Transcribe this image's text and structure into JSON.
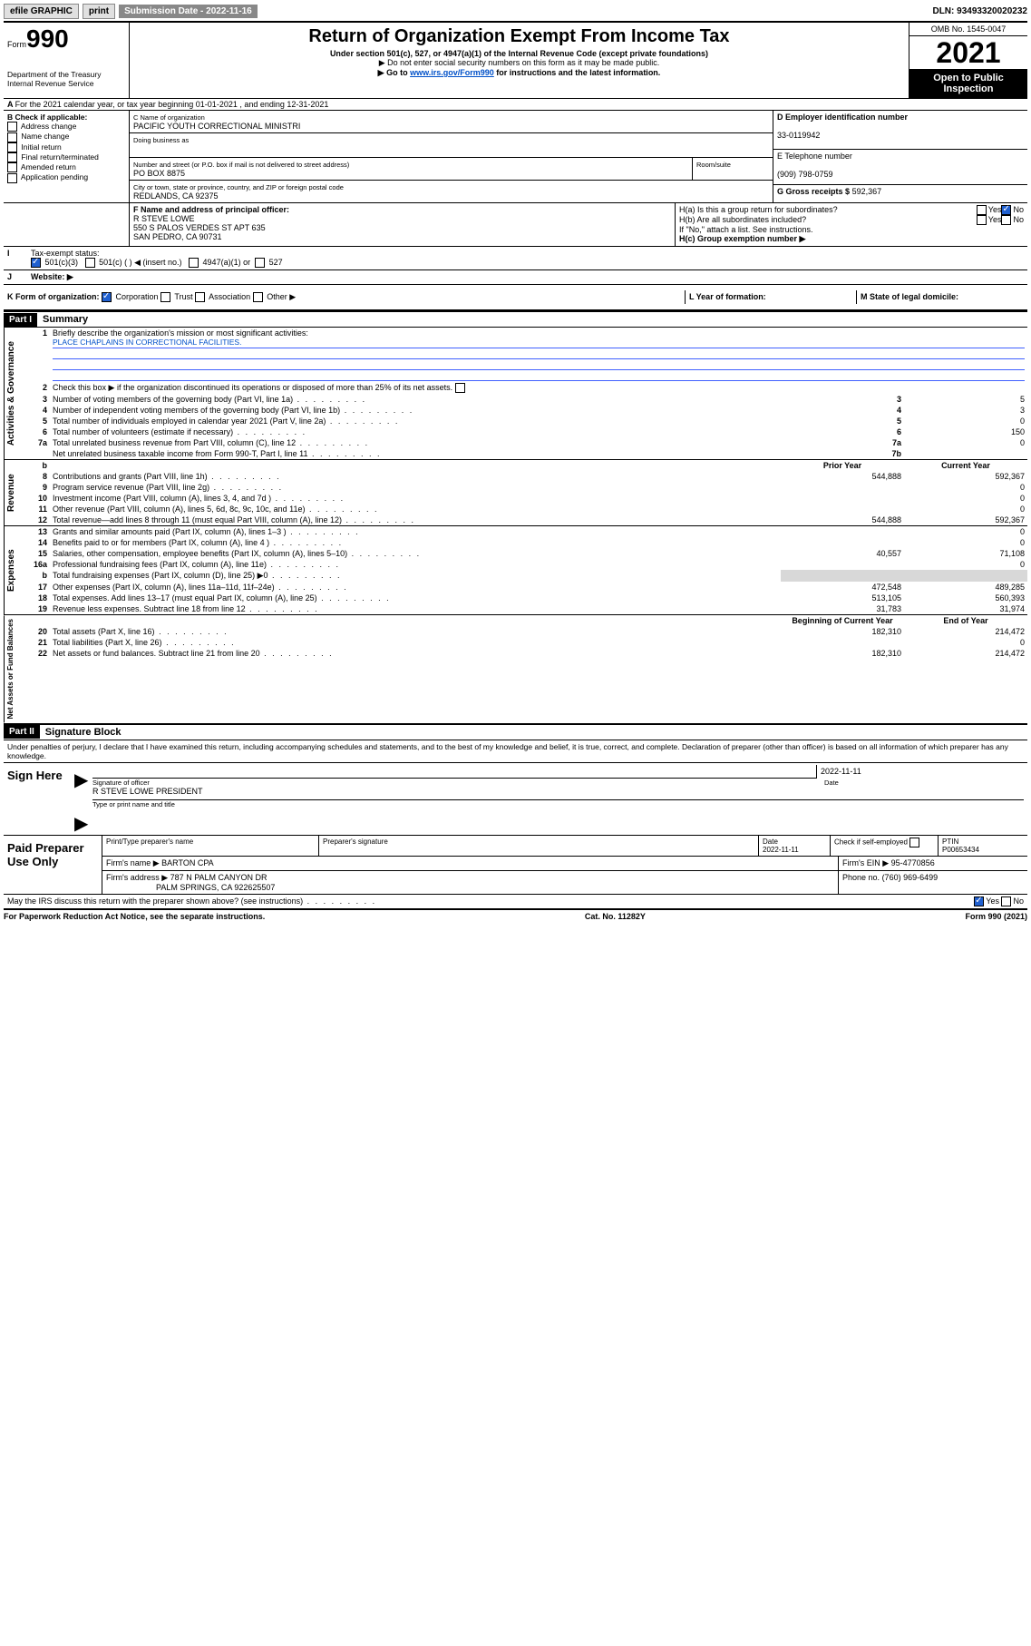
{
  "topbar": {
    "efile": "efile GRAPHIC",
    "print": "print",
    "sub_label": "Submission Date - 2022-11-16",
    "dln": "DLN: 93493320020232"
  },
  "header": {
    "form_word": "Form",
    "form_num": "990",
    "dept": "Department of the Treasury\nInternal Revenue Service",
    "title": "Return of Organization Exempt From Income Tax",
    "subtitle": "Under section 501(c), 527, or 4947(a)(1) of the Internal Revenue Code (except private foundations)",
    "line1": "▶ Do not enter social security numbers on this form as it may be made public.",
    "line2_pre": "▶ Go to ",
    "line2_link": "www.irs.gov/Form990",
    "line2_post": " for instructions and the latest information.",
    "omb": "OMB No. 1545-0047",
    "year": "2021",
    "open": "Open to Public Inspection"
  },
  "A": {
    "text": "For the 2021 calendar year, or tax year beginning 01-01-2021   , and ending 12-31-2021"
  },
  "B": {
    "label": "B Check if applicable:",
    "items": [
      "Address change",
      "Name change",
      "Initial return",
      "Final return/terminated",
      "Amended return",
      "Application pending"
    ]
  },
  "C": {
    "name_lbl": "C Name of organization",
    "name": "PACIFIC YOUTH CORRECTIONAL MINISTRI",
    "dba_lbl": "Doing business as",
    "dba": "",
    "street_lbl": "Number and street (or P.O. box if mail is not delivered to street address)",
    "room_lbl": "Room/suite",
    "street": "PO BOX 8875",
    "city_lbl": "City or town, state or province, country, and ZIP or foreign postal code",
    "city": "REDLANDS, CA  92375"
  },
  "D": {
    "lbl": "D Employer identification number",
    "val": "33-0119942"
  },
  "E": {
    "lbl": "E Telephone number",
    "val": "(909) 798-0759"
  },
  "G": {
    "lbl": "G Gross receipts $",
    "val": "592,367"
  },
  "F": {
    "lbl": "F  Name and address of principal officer:",
    "lines": [
      "R STEVE LOWE",
      "550 S PALOS VERDES ST APT 635",
      "SAN PEDRO, CA  90731"
    ]
  },
  "H": {
    "a": "H(a)  Is this a group return for subordinates?",
    "b": "H(b)  Are all subordinates included?",
    "b_note": "If \"No,\" attach a list. See instructions.",
    "c": "H(c)  Group exemption number ▶",
    "yes": "Yes",
    "no": "No"
  },
  "I": {
    "lbl": "Tax-exempt status:",
    "opts": [
      "501(c)(3)",
      "501(c) (  ) ◀ (insert no.)",
      "4947(a)(1) or",
      "527"
    ]
  },
  "J": {
    "lbl": "Website: ▶",
    "val": ""
  },
  "K": {
    "lbl": "K Form of organization:",
    "opts": [
      "Corporation",
      "Trust",
      "Association",
      "Other ▶"
    ]
  },
  "L": {
    "lbl": "L Year of formation:",
    "val": ""
  },
  "M": {
    "lbl": "M State of legal domicile:",
    "val": ""
  },
  "partI": {
    "hdr": "Part I",
    "title": "Summary"
  },
  "summary": {
    "q1": "Briefly describe the organization's mission or most significant activities:",
    "mission": "PLACE CHAPLAINS IN CORRECTIONAL FACILITIES.",
    "q2": "Check this box ▶       if the organization discontinued its operations or disposed of more than 25% of its net assets.",
    "rows_top": [
      {
        "n": "3",
        "t": "Number of voting members of the governing body (Part VI, line 1a)",
        "box": "3",
        "v": "5"
      },
      {
        "n": "4",
        "t": "Number of independent voting members of the governing body (Part VI, line 1b)",
        "box": "4",
        "v": "3"
      },
      {
        "n": "5",
        "t": "Total number of individuals employed in calendar year 2021 (Part V, line 2a)",
        "box": "5",
        "v": "0"
      },
      {
        "n": "6",
        "t": "Total number of volunteers (estimate if necessary)",
        "box": "6",
        "v": "150"
      },
      {
        "n": "7a",
        "t": "Total unrelated business revenue from Part VIII, column (C), line 12",
        "box": "7a",
        "v": "0"
      },
      {
        "n": "",
        "t": "Net unrelated business taxable income from Form 990-T, Part I, line 11",
        "box": "7b",
        "v": ""
      }
    ],
    "col_hdr": {
      "b": "b",
      "prior": "Prior Year",
      "curr": "Current Year"
    },
    "revenue": [
      {
        "n": "8",
        "t": "Contributions and grants (Part VIII, line 1h)",
        "p": "544,888",
        "c": "592,367"
      },
      {
        "n": "9",
        "t": "Program service revenue (Part VIII, line 2g)",
        "p": "",
        "c": "0"
      },
      {
        "n": "10",
        "t": "Investment income (Part VIII, column (A), lines 3, 4, and 7d )",
        "p": "",
        "c": "0"
      },
      {
        "n": "11",
        "t": "Other revenue (Part VIII, column (A), lines 5, 6d, 8c, 9c, 10c, and 11e)",
        "p": "",
        "c": "0"
      },
      {
        "n": "12",
        "t": "Total revenue—add lines 8 through 11 (must equal Part VIII, column (A), line 12)",
        "p": "544,888",
        "c": "592,367"
      }
    ],
    "expenses": [
      {
        "n": "13",
        "t": "Grants and similar amounts paid (Part IX, column (A), lines 1–3 )",
        "p": "",
        "c": "0"
      },
      {
        "n": "14",
        "t": "Benefits paid to or for members (Part IX, column (A), line 4 )",
        "p": "",
        "c": "0"
      },
      {
        "n": "15",
        "t": "Salaries, other compensation, employee benefits (Part IX, column (A), lines 5–10)",
        "p": "40,557",
        "c": "71,108"
      },
      {
        "n": "16a",
        "t": "Professional fundraising fees (Part IX, column (A), line 11e)",
        "p": "",
        "c": "0"
      },
      {
        "n": "b",
        "t": "Total fundraising expenses (Part IX, column (D), line 25) ▶0",
        "p": "GRAY",
        "c": "GRAY"
      },
      {
        "n": "17",
        "t": "Other expenses (Part IX, column (A), lines 11a–11d, 11f–24e)",
        "p": "472,548",
        "c": "489,285"
      },
      {
        "n": "18",
        "t": "Total expenses. Add lines 13–17 (must equal Part IX, column (A), line 25)",
        "p": "513,105",
        "c": "560,393"
      },
      {
        "n": "19",
        "t": "Revenue less expenses. Subtract line 18 from line 12",
        "p": "31,783",
        "c": "31,974"
      }
    ],
    "net_hdr": {
      "b": "Beginning of Current Year",
      "e": "End of Year"
    },
    "net": [
      {
        "n": "20",
        "t": "Total assets (Part X, line 16)",
        "p": "182,310",
        "c": "214,472"
      },
      {
        "n": "21",
        "t": "Total liabilities (Part X, line 26)",
        "p": "",
        "c": "0"
      },
      {
        "n": "22",
        "t": "Net assets or fund balances. Subtract line 21 from line 20",
        "p": "182,310",
        "c": "214,472"
      }
    ],
    "vert": {
      "gov": "Activities & Governance",
      "rev": "Revenue",
      "exp": "Expenses",
      "net": "Net Assets or Fund Balances"
    }
  },
  "partII": {
    "hdr": "Part II",
    "title": "Signature Block",
    "perjury": "Under penalties of perjury, I declare that I have examined this return, including accompanying schedules and statements, and to the best of my knowledge and belief, it is true, correct, and complete. Declaration of preparer (other than officer) is based on all information of which preparer has any knowledge."
  },
  "sign": {
    "here": "Sign Here",
    "sig_lbl": "Signature of officer",
    "date_lbl": "Date",
    "date": "2022-11-11",
    "name": "R STEVE LOWE  PRESIDENT",
    "name_lbl": "Type or print name and title"
  },
  "paid": {
    "title": "Paid Preparer Use Only",
    "h": [
      "Print/Type preparer's name",
      "Preparer's signature",
      "Date",
      "",
      "PTIN"
    ],
    "date": "2022-11-11",
    "check_lbl": "Check        if self-employed",
    "ptin": "P00653434",
    "firm_lbl": "Firm's name   ▶",
    "firm": "BARTON CPA",
    "ein_lbl": "Firm's EIN ▶",
    "ein": "95-4770856",
    "addr_lbl": "Firm's address ▶",
    "addr1": "787 N PALM CANYON DR",
    "addr2": "PALM SPRINGS, CA  922625507",
    "phone_lbl": "Phone no.",
    "phone": "(760) 969-6499"
  },
  "discuss": {
    "q": "May the IRS discuss this return with the preparer shown above? (see instructions)",
    "yes": "Yes",
    "no": "No"
  },
  "footer": {
    "l": "For Paperwork Reduction Act Notice, see the separate instructions.",
    "m": "Cat. No. 11282Y",
    "r": "Form 990 (2021)"
  }
}
